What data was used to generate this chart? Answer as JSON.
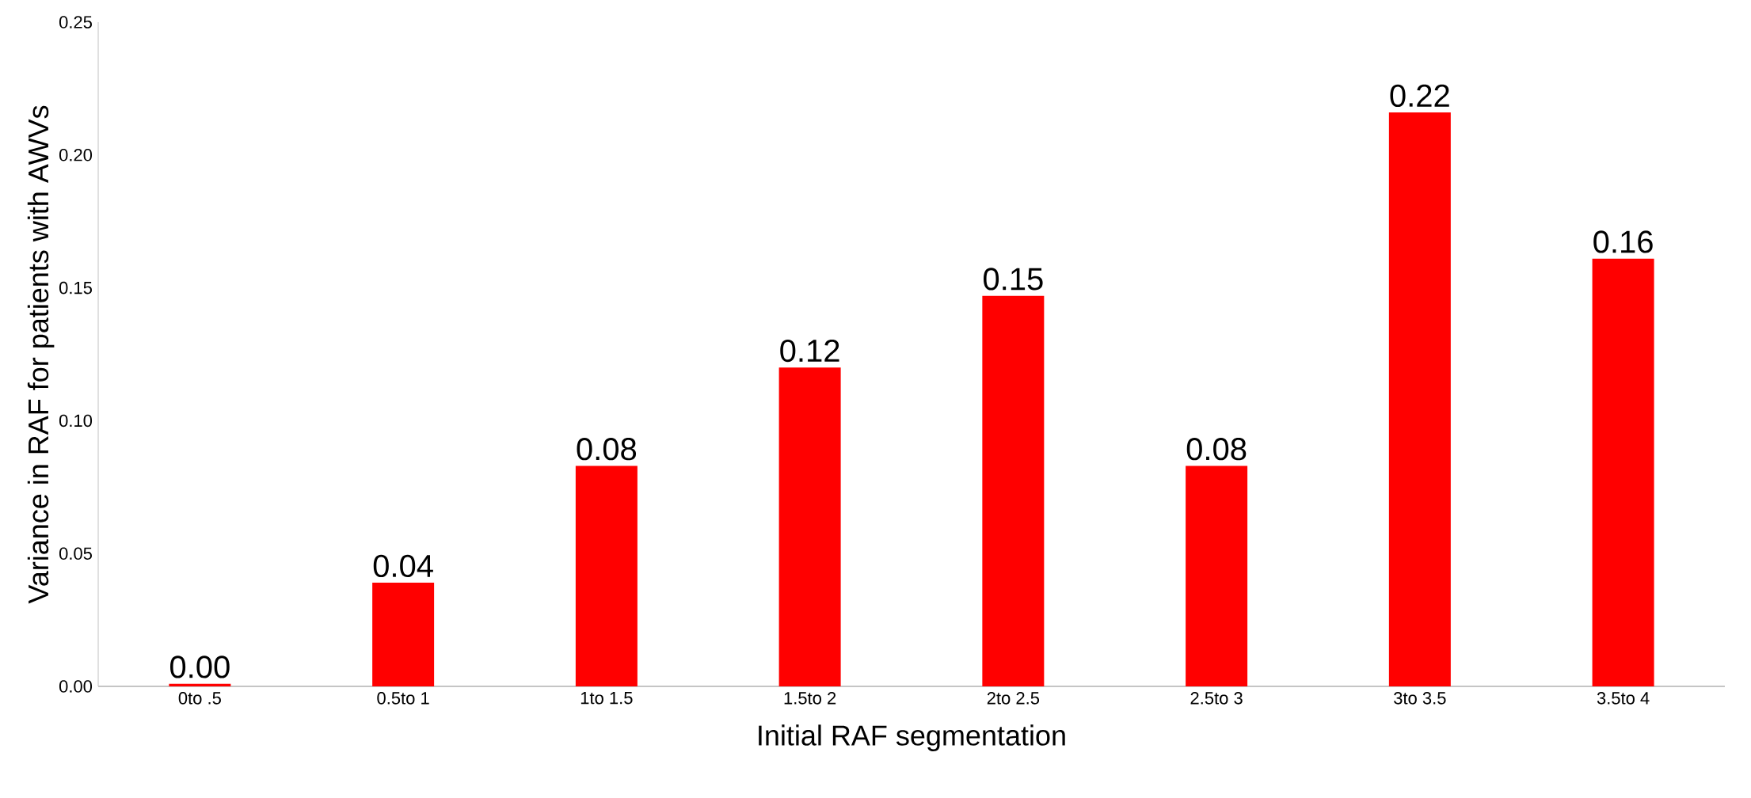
{
  "chart_data": {
    "type": "bar",
    "xlabel": "Initial RAF segmentation",
    "ylabel": "Variance in RAF for patients with AWVs",
    "categories": [
      "0to .5",
      "0.5to 1",
      "1to 1.5",
      "1.5to 2",
      "2to 2.5",
      "2.5to 3",
      "3to 3.5",
      "3.5to 4"
    ],
    "values": [
      0.001,
      0.039,
      0.083,
      0.12,
      0.147,
      0.083,
      0.216,
      0.161
    ],
    "value_labels": [
      "0.00",
      "0.04",
      "0.08",
      "0.12",
      "0.15",
      "0.08",
      "0.22",
      "0.16"
    ],
    "color": "#ff0000",
    "ylim": [
      0,
      0.25
    ],
    "yticks": [
      "0.00",
      "0.05",
      "0.10",
      "0.15",
      "0.20",
      "0.25"
    ],
    "grid": false
  }
}
